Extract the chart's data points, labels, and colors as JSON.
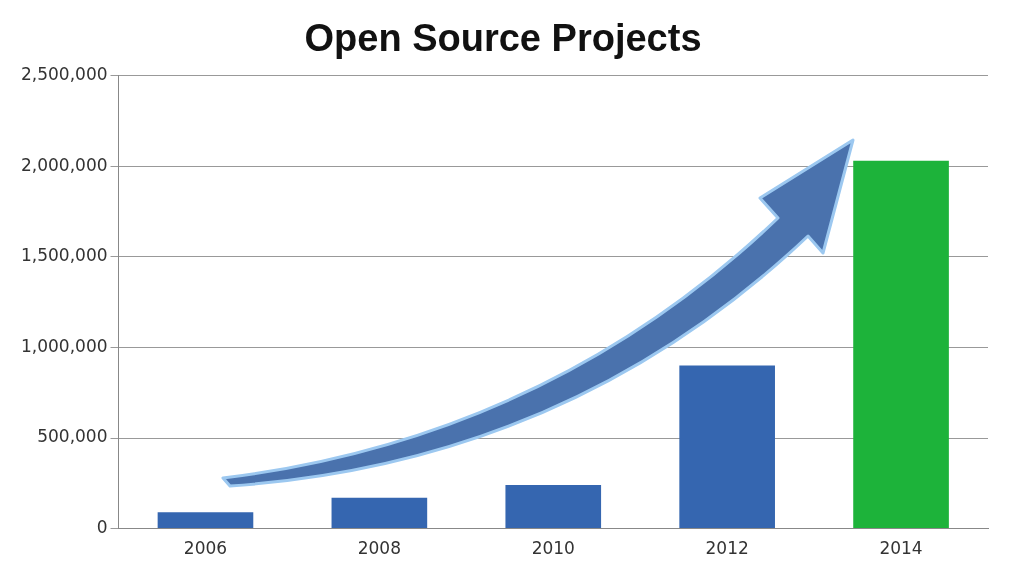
{
  "chart_data": {
    "type": "bar",
    "title": "Open Source Projects",
    "categories": [
      "2006",
      "2008",
      "2010",
      "2012",
      "2014"
    ],
    "values": [
      90000,
      170000,
      240000,
      900000,
      2030000
    ],
    "colors": [
      "#3566b0",
      "#3566b0",
      "#3566b0",
      "#3566b0",
      "#1db33a"
    ],
    "ylim": [
      0,
      2500000
    ],
    "yticks": [
      0,
      {
        "value": 500000,
        "label": "500,000"
      },
      {
        "value": 1000000,
        "label": "1,000,000"
      },
      {
        "value": 1500000,
        "label": "1,500,000"
      },
      {
        "value": 2000000,
        "label": "2,000,000"
      },
      {
        "value": 2500000,
        "label": "2,500,000"
      }
    ],
    "grid": "y",
    "legend": false
  }
}
